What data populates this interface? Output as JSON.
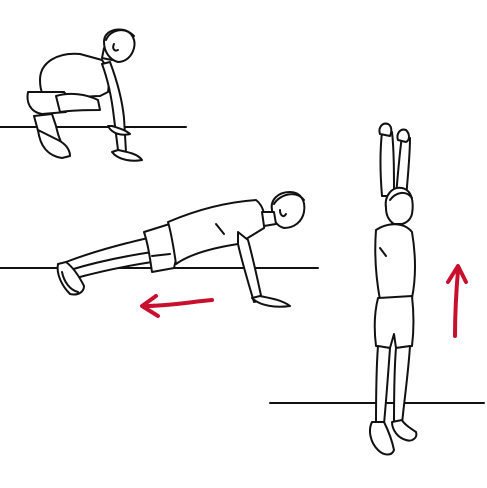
{
  "scene": {
    "figures": [
      {
        "pose": "squat",
        "icon": "squatting-figure-icon"
      },
      {
        "pose": "plank",
        "icon": "plank-figure-icon"
      },
      {
        "pose": "jump",
        "icon": "jumping-figure-icon"
      }
    ],
    "arrows": [
      {
        "direction": "left",
        "icon": "arrow-left-icon",
        "color": "#c8102e"
      },
      {
        "direction": "up",
        "icon": "arrow-up-icon",
        "color": "#c8102e"
      }
    ],
    "colors": {
      "ink": "#111111",
      "accent": "#c8102e",
      "background": "#ffffff"
    }
  }
}
